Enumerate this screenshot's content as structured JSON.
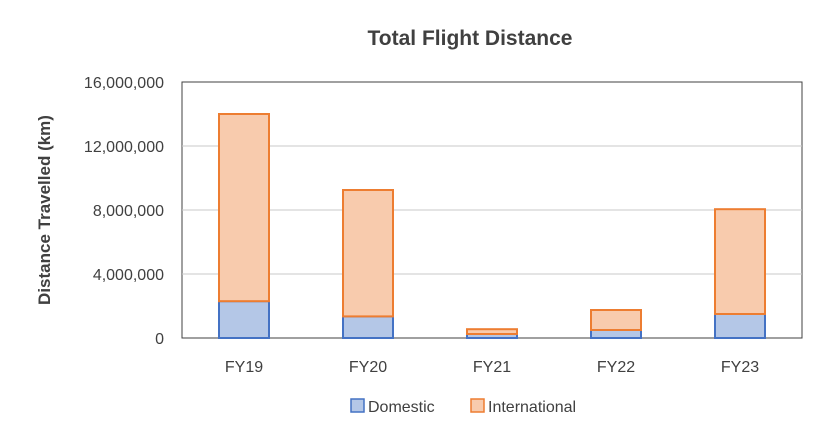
{
  "chart_data": {
    "type": "bar",
    "stacked": true,
    "title": "Total Flight Distance",
    "xlabel": "",
    "ylabel": "Distance Travelled (km)",
    "ylim": [
      0,
      16000000
    ],
    "yticks": [
      0,
      4000000,
      8000000,
      12000000,
      16000000
    ],
    "ytick_labels": [
      "0",
      "4,000,000",
      "8,000,000",
      "12,000,000",
      "16,000,000"
    ],
    "grid": true,
    "legend_position": "bottom",
    "categories": [
      "FY19",
      "FY20",
      "FY21",
      "FY22",
      "FY23"
    ],
    "series": [
      {
        "name": "Domestic",
        "values": [
          2300000,
          1350000,
          250000,
          500000,
          1500000
        ],
        "fill": "#b4c7e7",
        "stroke": "#4472c4"
      },
      {
        "name": "International",
        "values": [
          11700000,
          7900000,
          300000,
          1250000,
          6550000
        ],
        "fill": "#f8cbad",
        "stroke": "#ed7d31"
      }
    ]
  }
}
